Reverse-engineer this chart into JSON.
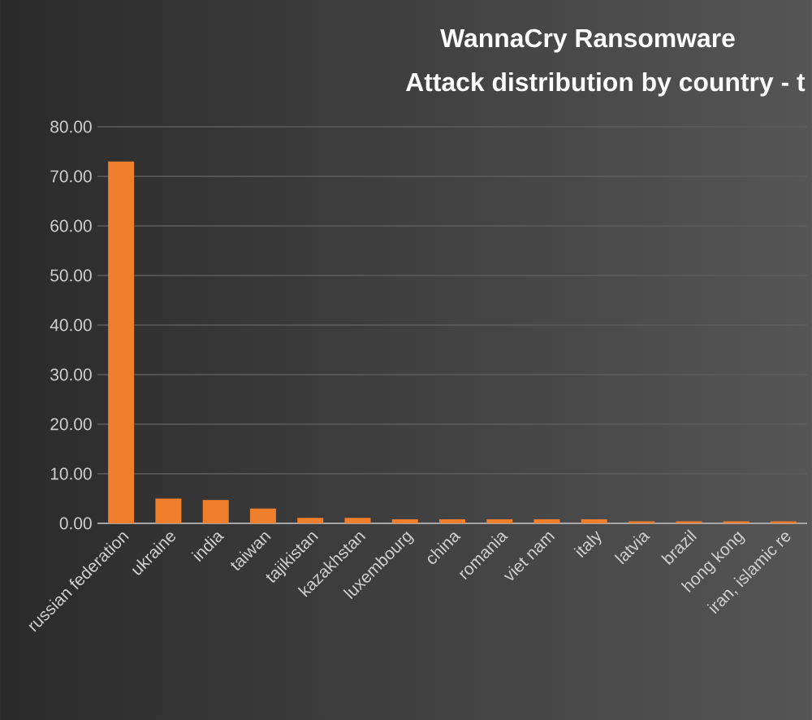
{
  "chart_data": {
    "type": "bar",
    "title": "WannaCry Ransomware",
    "subtitle": "Attack distribution by country - t",
    "categories": [
      "russian federation",
      "ukraine",
      "india",
      "taiwan",
      "tajikistan",
      "kazakhstan",
      "luxembourg",
      "china",
      "romania",
      "viet nam",
      "italy",
      "latvia",
      "brazil",
      "hong kong",
      "iran, islamic re"
    ],
    "values": [
      73,
      5,
      4.7,
      3,
      1.1,
      1.1,
      0.8,
      0.8,
      0.8,
      0.8,
      0.8,
      0.4,
      0.4,
      0.4,
      0.4
    ],
    "color": "#f07f2d",
    "ylim": [
      0,
      80
    ],
    "yticks": [
      {
        "value": 0,
        "label": "0.00"
      },
      {
        "value": 10,
        "label": "10.00"
      },
      {
        "value": 20,
        "label": "20.00"
      },
      {
        "value": 30,
        "label": "30.00"
      },
      {
        "value": 40,
        "label": "40.00"
      },
      {
        "value": 50,
        "label": "50.00"
      },
      {
        "value": 60,
        "label": "60.00"
      },
      {
        "value": 70,
        "label": "70.00"
      },
      {
        "value": 80,
        "label": "80.00"
      }
    ],
    "grid": "y"
  }
}
